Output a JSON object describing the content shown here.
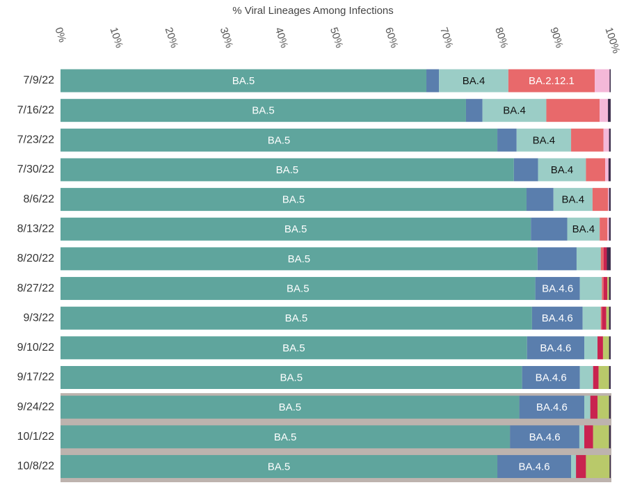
{
  "chart_data": {
    "type": "stacked-bar",
    "orientation": "horizontal",
    "title": "% Viral Lineages Among Infections",
    "categories": [
      "7/9/22",
      "7/16/22",
      "7/23/22",
      "7/30/22",
      "8/6/22",
      "8/13/22",
      "8/20/22",
      "8/27/22",
      "9/3/22",
      "9/10/22",
      "9/17/22",
      "9/24/22",
      "10/1/22",
      "10/8/22"
    ],
    "xlim": [
      0,
      100
    ],
    "xticks": [
      {
        "value": 0,
        "label": "0%"
      },
      {
        "value": 10,
        "label": "10%"
      },
      {
        "value": 20,
        "label": "20%"
      },
      {
        "value": 30,
        "label": "30%"
      },
      {
        "value": 40,
        "label": "40%"
      },
      {
        "value": 50,
        "label": "50%"
      },
      {
        "value": 60,
        "label": "60%"
      },
      {
        "value": 70,
        "label": "70%"
      },
      {
        "value": 80,
        "label": "80%"
      },
      {
        "value": 90,
        "label": "90%"
      },
      {
        "value": 100,
        "label": "100%"
      }
    ],
    "series": [
      {
        "name": "BA.5",
        "color": "#5fa59d",
        "label_color": "#ffffff",
        "values": [
          66.5,
          73.7,
          79.4,
          82.4,
          84.7,
          85.5,
          86.7,
          86.3,
          85.7,
          84.8,
          83.9,
          83.4,
          81.7,
          79.4
        ],
        "show_label": [
          true,
          true,
          true,
          true,
          true,
          true,
          true,
          true,
          true,
          true,
          true,
          true,
          true,
          true
        ]
      },
      {
        "name": "BA.4.6",
        "color": "#5a7ead",
        "label_color": "#ffffff",
        "values": [
          2.3,
          3.0,
          3.5,
          4.4,
          4.9,
          6.6,
          7.1,
          8.1,
          9.2,
          10.4,
          10.5,
          11.8,
          12.6,
          13.4
        ],
        "show_label": [
          false,
          false,
          false,
          false,
          false,
          false,
          false,
          true,
          true,
          true,
          true,
          true,
          true,
          true
        ]
      },
      {
        "name": "BA.4",
        "color": "#9bcdc6",
        "label_color": "#111111",
        "values": [
          12.6,
          11.6,
          9.9,
          8.7,
          7.1,
          5.9,
          4.4,
          4.0,
          3.3,
          2.4,
          2.4,
          1.1,
          0.9,
          0.9
        ],
        "show_label": [
          true,
          true,
          true,
          true,
          true,
          true,
          false,
          false,
          false,
          false,
          false,
          false,
          false,
          false
        ]
      },
      {
        "name": "BA.2.12.1",
        "color": "#e8696b",
        "label_color": "#ffffff",
        "values": [
          15.7,
          9.7,
          5.9,
          3.5,
          2.8,
          1.4,
          0.5,
          0.3,
          0.2,
          0,
          0,
          0,
          0,
          0
        ],
        "show_label": [
          true,
          false,
          false,
          false,
          false,
          false,
          false,
          false,
          false,
          false,
          false,
          false,
          false,
          false
        ]
      },
      {
        "color": "#f4b8d8",
        "values": [
          2.7,
          1.5,
          1.0,
          0.6,
          0.2,
          0.3,
          0,
          0,
          0,
          0,
          0,
          0,
          0,
          0
        ]
      },
      {
        "color": "#c9234f",
        "values": [
          0,
          0,
          0,
          0,
          0,
          0,
          0.6,
          0.7,
          0.8,
          1.0,
          1.0,
          1.3,
          1.6,
          1.8
        ]
      },
      {
        "color": "#b9c96a",
        "values": [
          0,
          0,
          0,
          0,
          0,
          0,
          0,
          0.3,
          0.5,
          1.1,
          1.9,
          2.1,
          2.9,
          4.3
        ]
      },
      {
        "color": "#3a2c4a",
        "values": [
          0.2,
          0.5,
          0.3,
          0.4,
          0.3,
          0.3,
          0.7,
          0.3,
          0.3,
          0.3,
          0.3,
          0.3,
          0.3,
          0.2
        ]
      }
    ]
  }
}
